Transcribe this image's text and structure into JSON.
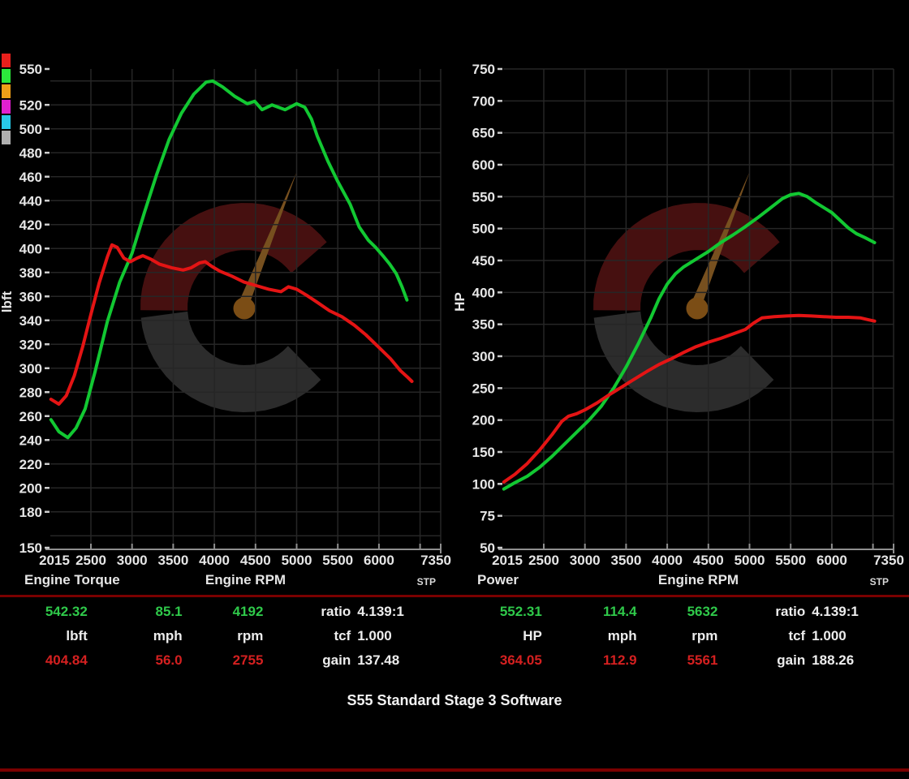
{
  "colors": {
    "background": "#000000",
    "grid": "#262626",
    "axis_line": "#8f8f8f",
    "tick_text": "#e6e6e6",
    "green_curve": "#12c832",
    "red_curve": "#e41414",
    "separator": "#7a0000",
    "stats_green": "#2fc94a",
    "stats_red": "#d42020",
    "watermark_gray": "#2c2c2c",
    "watermark_red": "#461010",
    "watermark_needle": "#77501f",
    "watermark_hub": "#7b4d15"
  },
  "legend": {
    "names": [
      "red-swatch",
      "green-swatch",
      "orange-swatch",
      "magenta-swatch",
      "cyan-swatch",
      "gray-swatch"
    ],
    "colors": [
      "#e8201c",
      "#2ce83c",
      "#f0a018",
      "#e020d0",
      "#28c8e8",
      "#b0b0b0"
    ]
  },
  "footer": {
    "title": "S55 Standard Stage 3 Software"
  },
  "stats": {
    "left": {
      "peak_value": "542.32",
      "peak_speed": "85.1",
      "peak_rpm": "4192",
      "unit": "lbft",
      "speed_unit": "mph",
      "rpm_unit": "rpm",
      "base_value": "404.84",
      "base_speed": "56.0",
      "base_rpm": "2755",
      "ratio_label": "ratio",
      "ratio_value": "4.139:1",
      "tcf_label": "tcf",
      "tcf_value": "1.000",
      "gain_label": "gain",
      "gain_value": "137.48"
    },
    "right": {
      "peak_value": "552.31",
      "peak_speed": "114.4",
      "peak_rpm": "5632",
      "unit": "HP",
      "speed_unit": "mph",
      "rpm_unit": "rpm",
      "base_value": "364.05",
      "base_speed": "112.9",
      "base_rpm": "5561",
      "ratio_label": "ratio",
      "ratio_value": "4.139:1",
      "tcf_label": "tcf",
      "tcf_value": "1.000",
      "gain_label": "gain",
      "gain_value": "188.26"
    }
  },
  "chart_data": [
    {
      "type": "line",
      "title": "Engine Torque",
      "xlabel": "Engine RPM",
      "ylabel": "lbft",
      "corner_label": "STP",
      "x_axis": {
        "min": 2015,
        "max": 7350,
        "tick_labels": [
          "2015",
          "2500",
          "3000",
          "3500",
          "4000",
          "4500",
          "5000",
          "5500",
          "6000",
          "7350"
        ]
      },
      "y_axis": {
        "mode": "linear",
        "min": 150,
        "max": 550,
        "ticks": [
          550,
          520,
          500,
          480,
          460,
          440,
          420,
          400,
          380,
          360,
          340,
          320,
          300,
          280,
          260,
          240,
          220,
          200,
          180,
          150
        ]
      },
      "series": [
        {
          "name": "green",
          "color": "#12c832",
          "points": [
            [
              2015,
              257
            ],
            [
              2110,
              247
            ],
            [
              2220,
              242
            ],
            [
              2320,
              250
            ],
            [
              2430,
              266
            ],
            [
              2550,
              297
            ],
            [
              2700,
              339
            ],
            [
              2850,
              372
            ],
            [
              3000,
              396
            ],
            [
              3150,
              430
            ],
            [
              3300,
              462
            ],
            [
              3450,
              491
            ],
            [
              3600,
              513
            ],
            [
              3750,
              529
            ],
            [
              3900,
              539
            ],
            [
              3980,
              540
            ],
            [
              4100,
              535
            ],
            [
              4250,
              527
            ],
            [
              4400,
              521
            ],
            [
              4490,
              523
            ],
            [
              4580,
              516
            ],
            [
              4700,
              520
            ],
            [
              4860,
              516
            ],
            [
              5000,
              521
            ],
            [
              5100,
              518
            ],
            [
              5180,
              508
            ],
            [
              5250,
              494
            ],
            [
              5380,
              473
            ],
            [
              5500,
              456
            ],
            [
              5650,
              437
            ],
            [
              5760,
              418
            ],
            [
              5870,
              407
            ],
            [
              5960,
              401
            ],
            [
              6060,
              393
            ],
            [
              6130,
              387
            ],
            [
              6210,
              379
            ],
            [
              6280,
              368
            ],
            [
              6340,
              357
            ]
          ]
        },
        {
          "name": "red",
          "color": "#e41414",
          "points": [
            [
              2015,
              274
            ],
            [
              2110,
              270
            ],
            [
              2200,
              277
            ],
            [
              2300,
              294
            ],
            [
              2400,
              318
            ],
            [
              2500,
              345
            ],
            [
              2600,
              371
            ],
            [
              2700,
              393
            ],
            [
              2755,
              403
            ],
            [
              2820,
              401
            ],
            [
              2900,
              392
            ],
            [
              2980,
              389
            ],
            [
              3060,
              392
            ],
            [
              3130,
              394
            ],
            [
              3230,
              391
            ],
            [
              3330,
              387
            ],
            [
              3480,
              384
            ],
            [
              3620,
              382
            ],
            [
              3720,
              384
            ],
            [
              3820,
              388
            ],
            [
              3890,
              389
            ],
            [
              3970,
              385
            ],
            [
              4070,
              381
            ],
            [
              4210,
              377
            ],
            [
              4360,
              372
            ],
            [
              4510,
              369
            ],
            [
              4660,
              366
            ],
            [
              4810,
              364
            ],
            [
              4900,
              368
            ],
            [
              5000,
              366
            ],
            [
              5120,
              361
            ],
            [
              5250,
              355
            ],
            [
              5400,
              348
            ],
            [
              5550,
              343
            ],
            [
              5700,
              336
            ],
            [
              5840,
              328
            ],
            [
              5990,
              318
            ],
            [
              6140,
              308
            ],
            [
              6260,
              298
            ],
            [
              6340,
              293
            ],
            [
              6400,
              289
            ]
          ]
        }
      ]
    },
    {
      "type": "line",
      "title": "Power",
      "xlabel": "Engine RPM",
      "ylabel": "HP",
      "corner_label": "STP",
      "x_axis": {
        "min": 2015,
        "max": 7350,
        "tick_labels": [
          "2015",
          "2500",
          "3000",
          "3500",
          "4000",
          "4500",
          "5000",
          "5500",
          "6000",
          "7350"
        ]
      },
      "y_axis": {
        "mode": "even",
        "min": 50,
        "max": 750,
        "ticks": [
          750,
          700,
          650,
          600,
          550,
          500,
          450,
          400,
          350,
          300,
          250,
          200,
          150,
          100,
          75,
          50
        ]
      },
      "series": [
        {
          "name": "green",
          "color": "#12c832",
          "points": [
            [
              2015,
              96
            ],
            [
              2150,
              102
            ],
            [
              2300,
              112
            ],
            [
              2450,
              126
            ],
            [
              2600,
              143
            ],
            [
              2750,
              162
            ],
            [
              2900,
              181
            ],
            [
              3050,
              200
            ],
            [
              3200,
              222
            ],
            [
              3350,
              250
            ],
            [
              3500,
              283
            ],
            [
              3650,
              320
            ],
            [
              3800,
              360
            ],
            [
              3900,
              390
            ],
            [
              4000,
              413
            ],
            [
              4100,
              429
            ],
            [
              4200,
              440
            ],
            [
              4350,
              452
            ],
            [
              4500,
              464
            ],
            [
              4650,
              478
            ],
            [
              4800,
              490
            ],
            [
              4950,
              503
            ],
            [
              5100,
              517
            ],
            [
              5250,
              532
            ],
            [
              5400,
              547
            ],
            [
              5500,
              553
            ],
            [
              5600,
              555
            ],
            [
              5700,
              550
            ],
            [
              5800,
              541
            ],
            [
              5900,
              533
            ],
            [
              6000,
              525
            ],
            [
              6100,
              513
            ],
            [
              6200,
              501
            ],
            [
              6300,
              492
            ],
            [
              6400,
              486
            ],
            [
              6520,
              478
            ]
          ]
        },
        {
          "name": "red",
          "color": "#e41414",
          "points": [
            [
              2015,
              103
            ],
            [
              2150,
              115
            ],
            [
              2300,
              132
            ],
            [
              2450,
              153
            ],
            [
              2600,
              177
            ],
            [
              2720,
              198
            ],
            [
              2800,
              206
            ],
            [
              2900,
              210
            ],
            [
              3000,
              216
            ],
            [
              3150,
              227
            ],
            [
              3300,
              240
            ],
            [
              3450,
              252
            ],
            [
              3600,
              264
            ],
            [
              3750,
              276
            ],
            [
              3900,
              287
            ],
            [
              4050,
              296
            ],
            [
              4200,
              306
            ],
            [
              4350,
              315
            ],
            [
              4500,
              322
            ],
            [
              4650,
              328
            ],
            [
              4800,
              335
            ],
            [
              4950,
              342
            ],
            [
              5050,
              352
            ],
            [
              5150,
              360
            ],
            [
              5300,
              362
            ],
            [
              5450,
              363
            ],
            [
              5600,
              364
            ],
            [
              5750,
              363
            ],
            [
              5900,
              362
            ],
            [
              6050,
              361
            ],
            [
              6200,
              361
            ],
            [
              6350,
              360
            ],
            [
              6450,
              357
            ],
            [
              6520,
              355
            ]
          ]
        }
      ]
    }
  ]
}
